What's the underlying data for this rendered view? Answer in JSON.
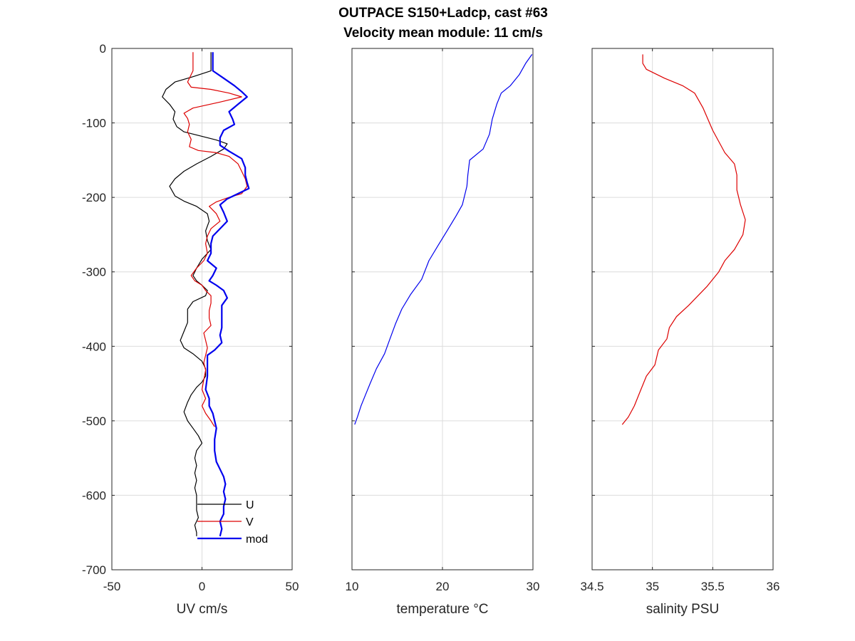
{
  "figure": {
    "title_line1": "OUTPACE S150+Ladcp, cast #63",
    "title_line2": "Velocity mean module:  11 cm/s"
  },
  "chart_data": [
    {
      "type": "line",
      "xlabel": "UV cm/s",
      "ylabel": "",
      "xlim": [
        -50,
        50
      ],
      "ylim": [
        -700,
        0
      ],
      "xticks": [
        -50,
        0,
        50
      ],
      "yticks": [
        0,
        -100,
        -200,
        -300,
        -400,
        -500,
        -600,
        -700
      ],
      "grid": true,
      "legend_position": "bottom-right",
      "series": [
        {
          "name": "U",
          "color": "#000000",
          "width": 1.2,
          "points": [
            [
              5,
              -5
            ],
            [
              5,
              -30
            ],
            [
              -5,
              -38
            ],
            [
              -15,
              -45
            ],
            [
              -20,
              -55
            ],
            [
              -22,
              -65
            ],
            [
              -18,
              -75
            ],
            [
              -15,
              -85
            ],
            [
              -16,
              -95
            ],
            [
              -14,
              -105
            ],
            [
              -10,
              -112
            ],
            [
              0,
              -118
            ],
            [
              8,
              -123
            ],
            [
              14,
              -128
            ],
            [
              12,
              -135
            ],
            [
              5,
              -145
            ],
            [
              -3,
              -155
            ],
            [
              -10,
              -165
            ],
            [
              -15,
              -175
            ],
            [
              -18,
              -185
            ],
            [
              -15,
              -198
            ],
            [
              -10,
              -205
            ],
            [
              -3,
              -212
            ],
            [
              3,
              -222
            ],
            [
              4,
              -232
            ],
            [
              2,
              -245
            ],
            [
              3,
              -258
            ],
            [
              5,
              -270
            ],
            [
              0,
              -283
            ],
            [
              -3,
              -295
            ],
            [
              -5,
              -305
            ],
            [
              -3,
              -312
            ],
            [
              0,
              -318
            ],
            [
              3,
              -325
            ],
            [
              2,
              -332
            ],
            [
              -5,
              -340
            ],
            [
              -8,
              -350
            ],
            [
              -8,
              -360
            ],
            [
              -8,
              -368
            ],
            [
              -10,
              -380
            ],
            [
              -12,
              -392
            ],
            [
              -10,
              -402
            ],
            [
              -5,
              -410
            ],
            [
              0,
              -420
            ],
            [
              2,
              -430
            ],
            [
              2,
              -440
            ],
            [
              0,
              -448
            ],
            [
              -3,
              -455
            ],
            [
              -6,
              -465
            ],
            [
              -8,
              -475
            ],
            [
              -10,
              -488
            ],
            [
              -8,
              -500
            ],
            [
              -5,
              -510
            ],
            [
              -2,
              -520
            ],
            [
              0,
              -530
            ],
            [
              -3,
              -540
            ],
            [
              -4,
              -550
            ],
            [
              -3,
              -560
            ],
            [
              -4,
              -570
            ],
            [
              -3,
              -580
            ],
            [
              -4,
              -590
            ],
            [
              -3,
              -600
            ],
            [
              -3,
              -610
            ],
            [
              -3,
              -620
            ],
            [
              -2,
              -630
            ],
            [
              -4,
              -640
            ],
            [
              -3,
              -650
            ],
            [
              -3,
              -655
            ]
          ]
        },
        {
          "name": "V",
          "color": "#dd0000",
          "width": 1.2,
          "points": [
            [
              -5,
              -5
            ],
            [
              -5,
              -30
            ],
            [
              -8,
              -45
            ],
            [
              -6,
              -52
            ],
            [
              5,
              -55
            ],
            [
              15,
              -60
            ],
            [
              22,
              -65
            ],
            [
              10,
              -72
            ],
            [
              -5,
              -80
            ],
            [
              -10,
              -87
            ],
            [
              -8,
              -94
            ],
            [
              -7,
              -102
            ],
            [
              -8,
              -112
            ],
            [
              -6,
              -122
            ],
            [
              -7,
              -132
            ],
            [
              -2,
              -137
            ],
            [
              8,
              -140
            ],
            [
              15,
              -145
            ],
            [
              20,
              -155
            ],
            [
              22,
              -165
            ],
            [
              24,
              -175
            ],
            [
              25,
              -185
            ],
            [
              22,
              -195
            ],
            [
              15,
              -200
            ],
            [
              8,
              -206
            ],
            [
              4,
              -212
            ],
            [
              8,
              -222
            ],
            [
              10,
              -232
            ],
            [
              5,
              -242
            ],
            [
              3,
              -252
            ],
            [
              2,
              -262
            ],
            [
              3,
              -275
            ],
            [
              1,
              -285
            ],
            [
              -3,
              -295
            ],
            [
              -6,
              -305
            ],
            [
              -4,
              -312
            ],
            [
              0,
              -318
            ],
            [
              2,
              -325
            ],
            [
              5,
              -332
            ],
            [
              5,
              -342
            ],
            [
              4,
              -352
            ],
            [
              4,
              -362
            ],
            [
              5,
              -372
            ],
            [
              1,
              -382
            ],
            [
              2,
              -392
            ],
            [
              3,
              -402
            ],
            [
              2,
              -412
            ],
            [
              1,
              -422
            ],
            [
              2,
              -432
            ],
            [
              1,
              -445
            ],
            [
              0,
              -458
            ],
            [
              2,
              -470
            ],
            [
              0,
              -480
            ],
            [
              2,
              -490
            ],
            [
              5,
              -500
            ],
            [
              7,
              -508
            ]
          ]
        },
        {
          "name": "mod",
          "color": "#0000ee",
          "width": 2.2,
          "points": [
            [
              6,
              -5
            ],
            [
              6,
              -30
            ],
            [
              12,
              -40
            ],
            [
              18,
              -50
            ],
            [
              22,
              -58
            ],
            [
              25,
              -65
            ],
            [
              20,
              -75
            ],
            [
              15,
              -85
            ],
            [
              17,
              -95
            ],
            [
              18,
              -102
            ],
            [
              12,
              -110
            ],
            [
              10,
              -120
            ],
            [
              10,
              -130
            ],
            [
              15,
              -138
            ],
            [
              22,
              -148
            ],
            [
              24,
              -160
            ],
            [
              24,
              -170
            ],
            [
              25,
              -180
            ],
            [
              26,
              -188
            ],
            [
              20,
              -195
            ],
            [
              14,
              -202
            ],
            [
              10,
              -210
            ],
            [
              12,
              -220
            ],
            [
              14,
              -232
            ],
            [
              10,
              -242
            ],
            [
              6,
              -252
            ],
            [
              5,
              -262
            ],
            [
              5,
              -275
            ],
            [
              3,
              -285
            ],
            [
              8,
              -295
            ],
            [
              6,
              -305
            ],
            [
              4,
              -312
            ],
            [
              8,
              -318
            ],
            [
              12,
              -325
            ],
            [
              14,
              -335
            ],
            [
              11,
              -345
            ],
            [
              11,
              -360
            ],
            [
              11,
              -375
            ],
            [
              10,
              -385
            ],
            [
              11,
              -395
            ],
            [
              7,
              -405
            ],
            [
              3,
              -412
            ],
            [
              3,
              -425
            ],
            [
              3,
              -440
            ],
            [
              2,
              -458
            ],
            [
              4,
              -470
            ],
            [
              4,
              -480
            ],
            [
              6,
              -490
            ],
            [
              7,
              -500
            ],
            [
              8,
              -510
            ],
            [
              7,
              -525
            ],
            [
              7,
              -540
            ],
            [
              8,
              -555
            ],
            [
              10,
              -565
            ],
            [
              12,
              -575
            ],
            [
              13,
              -585
            ],
            [
              12,
              -595
            ],
            [
              13,
              -605
            ],
            [
              12,
              -615
            ],
            [
              12,
              -625
            ],
            [
              10,
              -635
            ],
            [
              11,
              -645
            ],
            [
              10,
              -655
            ]
          ]
        }
      ]
    },
    {
      "type": "line",
      "xlabel": "temperature °C",
      "ylabel": "",
      "xlim": [
        10,
        30
      ],
      "ylim": [
        -700,
        0
      ],
      "xticks": [
        10,
        20,
        30
      ],
      "yticks": [
        0,
        -100,
        -200,
        -300,
        -400,
        -500,
        -600,
        -700
      ],
      "grid": true,
      "series": [
        {
          "color": "#0000ee",
          "width": 1.2,
          "points": [
            [
              29.9,
              -8
            ],
            [
              29.2,
              -20
            ],
            [
              28.5,
              -35
            ],
            [
              27.5,
              -50
            ],
            [
              26.5,
              -60
            ],
            [
              26,
              -75
            ],
            [
              25.5,
              -95
            ],
            [
              25.2,
              -115
            ],
            [
              24.5,
              -135
            ],
            [
              23,
              -150
            ],
            [
              22.8,
              -170
            ],
            [
              22.7,
              -185
            ],
            [
              22.2,
              -210
            ],
            [
              21.5,
              -225
            ],
            [
              20.5,
              -245
            ],
            [
              19.5,
              -265
            ],
            [
              18.5,
              -285
            ],
            [
              17.7,
              -310
            ],
            [
              16.5,
              -330
            ],
            [
              15.5,
              -350
            ],
            [
              14.8,
              -370
            ],
            [
              14.2,
              -390
            ],
            [
              13.6,
              -410
            ],
            [
              12.7,
              -430
            ],
            [
              12,
              -450
            ],
            [
              11.5,
              -465
            ],
            [
              11,
              -480
            ],
            [
              10.6,
              -495
            ],
            [
              10.3,
              -505
            ]
          ]
        }
      ]
    },
    {
      "type": "line",
      "xlabel": "salinity PSU",
      "ylabel": "",
      "xlim": [
        34.5,
        36
      ],
      "ylim": [
        -700,
        0
      ],
      "xticks": [
        34.5,
        35,
        35.5,
        36
      ],
      "xticklabels": [
        "34.5",
        "35",
        "35.5",
        "36"
      ],
      "yticks": [
        0,
        -100,
        -200,
        -300,
        -400,
        -500,
        -600,
        -700
      ],
      "grid": true,
      "series": [
        {
          "color": "#dd0000",
          "width": 1.2,
          "points": [
            [
              34.92,
              -8
            ],
            [
              34.92,
              -20
            ],
            [
              34.95,
              -28
            ],
            [
              35.1,
              -40
            ],
            [
              35.25,
              -50
            ],
            [
              35.35,
              -60
            ],
            [
              35.42,
              -80
            ],
            [
              35.5,
              -110
            ],
            [
              35.6,
              -140
            ],
            [
              35.68,
              -155
            ],
            [
              35.7,
              -170
            ],
            [
              35.7,
              -190
            ],
            [
              35.73,
              -210
            ],
            [
              35.77,
              -230
            ],
            [
              35.75,
              -250
            ],
            [
              35.68,
              -270
            ],
            [
              35.6,
              -285
            ],
            [
              35.55,
              -300
            ],
            [
              35.45,
              -320
            ],
            [
              35.3,
              -345
            ],
            [
              35.2,
              -360
            ],
            [
              35.14,
              -375
            ],
            [
              35.12,
              -390
            ],
            [
              35.05,
              -405
            ],
            [
              35.02,
              -425
            ],
            [
              34.95,
              -440
            ],
            [
              34.9,
              -460
            ],
            [
              34.85,
              -480
            ],
            [
              34.8,
              -495
            ],
            [
              34.75,
              -505
            ]
          ]
        }
      ]
    }
  ]
}
